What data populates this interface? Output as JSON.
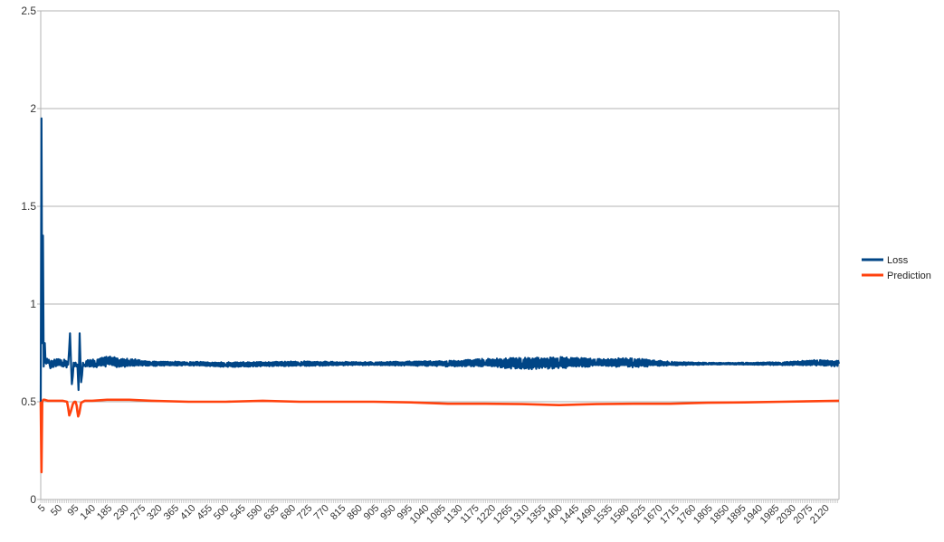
{
  "chart_data": {
    "type": "line",
    "title": "",
    "xlabel": "",
    "ylabel": "",
    "ylim": [
      0,
      2.5
    ],
    "yticks": [
      "0",
      "0.5",
      "1",
      "1.5",
      "2",
      "2.5"
    ],
    "xlim": [
      1,
      2155
    ],
    "xticks": [
      "5",
      "50",
      "95",
      "140",
      "185",
      "230",
      "275",
      "320",
      "365",
      "410",
      "455",
      "500",
      "545",
      "590",
      "635",
      "680",
      "725",
      "770",
      "815",
      "860",
      "905",
      "950",
      "995",
      "1040",
      "1085",
      "1130",
      "1175",
      "1220",
      "1265",
      "1310",
      "1355",
      "1400",
      "1445",
      "1490",
      "1535",
      "1580",
      "1625",
      "1670",
      "1715",
      "1760",
      "1805",
      "1850",
      "1895",
      "1940",
      "1985",
      "2030",
      "2075",
      "2120"
    ],
    "grid": "horizontal",
    "legend_position": "right",
    "series": [
      {
        "name": "Loss",
        "color": "#004586",
        "x": [
          1,
          3,
          5,
          7,
          9,
          12,
          14,
          18,
          25,
          40,
          60,
          75,
          80,
          85,
          90,
          95,
          100,
          103,
          106,
          110,
          115,
          120,
          130,
          150,
          180,
          210,
          240,
          270,
          300,
          400,
          500,
          700,
          900,
          1100,
          1200,
          1300,
          1400,
          1500,
          1600,
          1700,
          1800,
          1900,
          2000,
          2100,
          2155
        ],
        "y": [
          0.5,
          1.95,
          0.8,
          1.35,
          0.68,
          0.8,
          0.7,
          0.72,
          0.69,
          0.7,
          0.7,
          0.69,
          0.85,
          0.59,
          0.7,
          0.7,
          0.69,
          0.56,
          0.85,
          0.6,
          0.7,
          0.69,
          0.7,
          0.695,
          0.71,
          0.7,
          0.7,
          0.7,
          0.695,
          0.695,
          0.69,
          0.695,
          0.695,
          0.695,
          0.7,
          0.695,
          0.7,
          0.7,
          0.7,
          0.695,
          0.695,
          0.695,
          0.695,
          0.7,
          0.695
        ],
        "band": [
          0.005,
          0.01,
          0.01,
          0.01,
          0.02,
          0.02,
          0.02,
          0.015,
          0.02,
          0.02,
          0.02,
          0.02,
          0.01,
          0.01,
          0.02,
          0.02,
          0.02,
          0.01,
          0.01,
          0.01,
          0.02,
          0.02,
          0.02,
          0.02,
          0.03,
          0.025,
          0.02,
          0.015,
          0.012,
          0.01,
          0.012,
          0.012,
          0.008,
          0.015,
          0.02,
          0.03,
          0.03,
          0.02,
          0.025,
          0.01,
          0.005,
          0.005,
          0.008,
          0.015,
          0.015
        ]
      },
      {
        "name": "Prediction",
        "color": "#ff420e",
        "x": [
          1,
          3,
          5,
          8,
          12,
          20,
          40,
          60,
          72,
          75,
          78,
          82,
          88,
          92,
          95,
          98,
          100,
          102,
          105,
          110,
          120,
          140,
          180,
          240,
          300,
          400,
          500,
          600,
          700,
          800,
          900,
          1000,
          1100,
          1200,
          1300,
          1400,
          1500,
          1600,
          1700,
          1800,
          1900,
          2000,
          2100,
          2155
        ],
        "y": [
          0.5,
          0.14,
          0.5,
          0.51,
          0.51,
          0.505,
          0.505,
          0.505,
          0.5,
          0.47,
          0.43,
          0.45,
          0.49,
          0.5,
          0.5,
          0.48,
          0.45,
          0.425,
          0.44,
          0.495,
          0.505,
          0.505,
          0.51,
          0.51,
          0.505,
          0.5,
          0.5,
          0.505,
          0.5,
          0.5,
          0.5,
          0.497,
          0.49,
          0.49,
          0.488,
          0.483,
          0.488,
          0.49,
          0.49,
          0.495,
          0.497,
          0.5,
          0.503,
          0.505
        ]
      }
    ]
  }
}
